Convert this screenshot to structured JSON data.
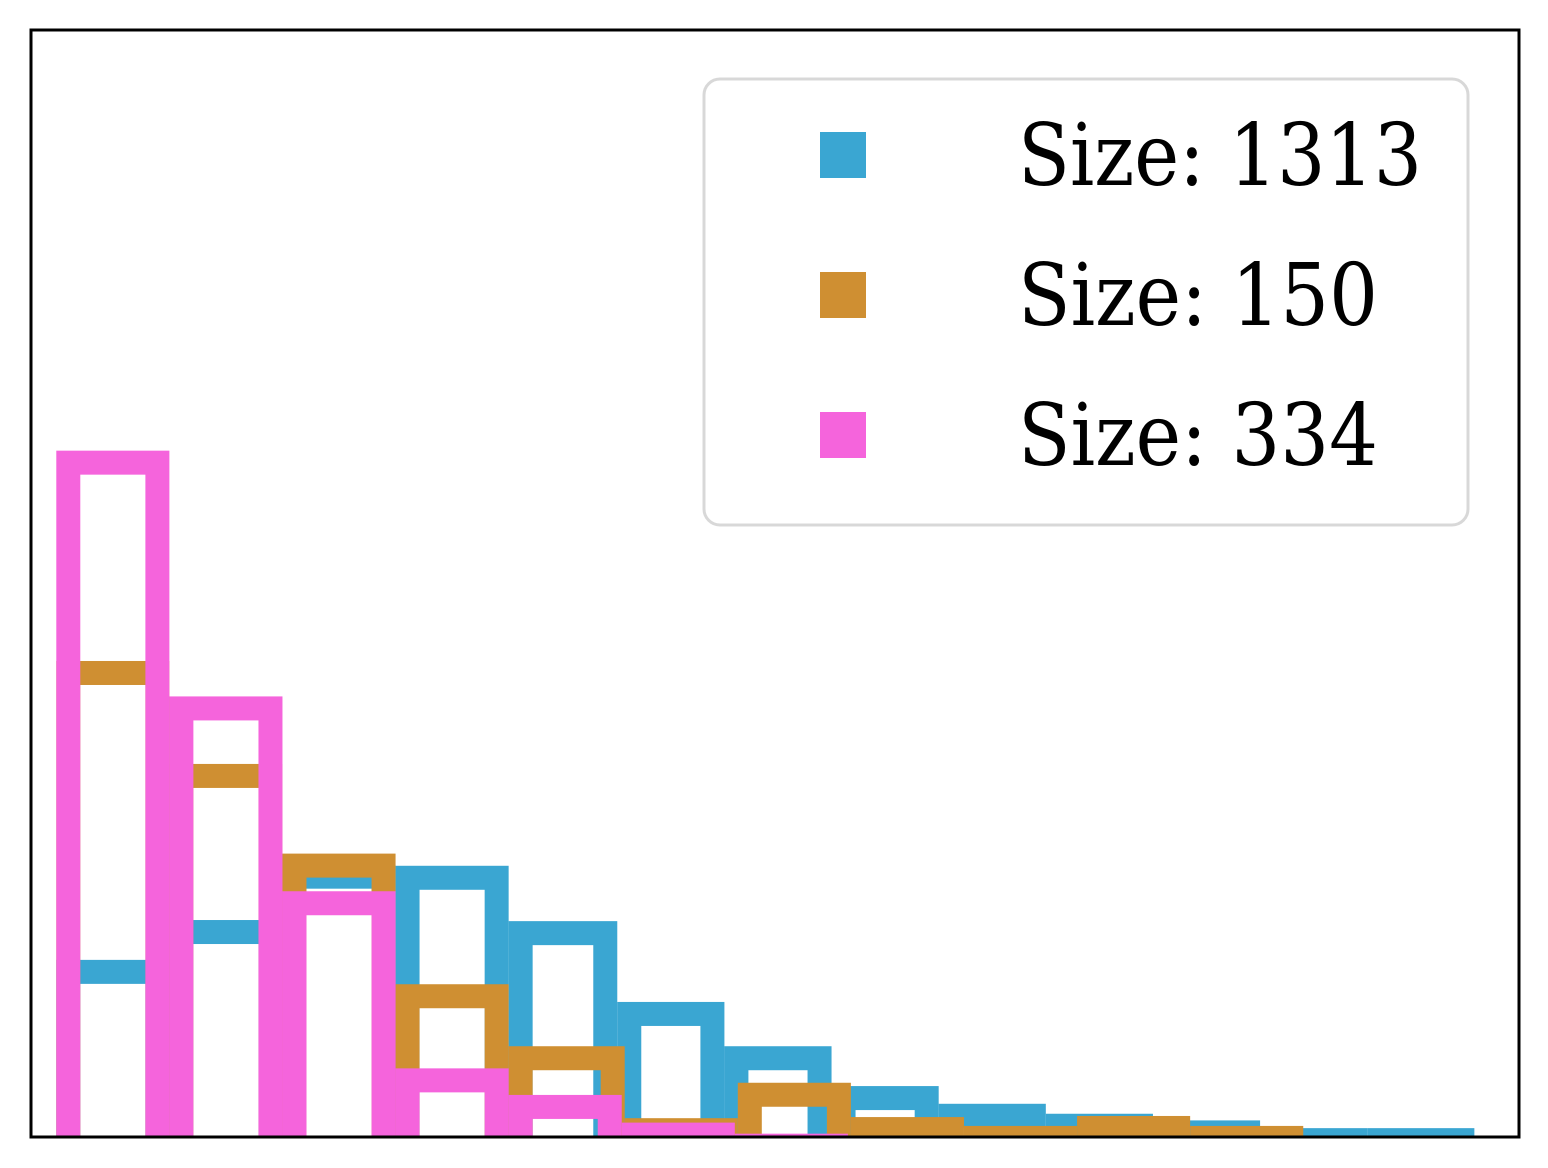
{
  "chart_data": {
    "type": "bar",
    "style": "step-histogram",
    "xlim": [
      0,
      1
    ],
    "ylim": [
      0,
      1
    ],
    "axes_ticks": "none",
    "grid": false,
    "legend_placement": "top-right",
    "series": [
      {
        "name": "Size: 1313",
        "color": "#3aa6d2",
        "bin_edges": [
          0.017,
          0.093,
          0.169,
          0.245,
          0.321,
          0.394,
          0.466,
          0.538,
          0.61,
          0.682,
          0.754,
          0.826,
          0.898,
          0.97
        ],
        "values": [
          0.16,
          0.196,
          0.246,
          0.245,
          0.195,
          0.122,
          0.082,
          0.046,
          0.03,
          0.021,
          0.015,
          0.008,
          0.008
        ]
      },
      {
        "name": "Size: 150",
        "color": "#cf8f32",
        "bin_edges": [
          0.017,
          0.093,
          0.169,
          0.245,
          0.321,
          0.399,
          0.475,
          0.551,
          0.627,
          0.703,
          0.779,
          0.855
        ],
        "values": [
          0.43,
          0.337,
          0.256,
          0.138,
          0.082,
          0.017,
          0.049,
          0.018,
          0.01,
          0.019,
          0.01
        ]
      },
      {
        "name": "Size: 334",
        "color": "#f564dc",
        "bin_edges": [
          0.017,
          0.093,
          0.169,
          0.245,
          0.321,
          0.397,
          0.473,
          0.549
        ],
        "values": [
          0.62,
          0.398,
          0.222,
          0.062,
          0.038,
          0.013,
          0.003
        ]
      }
    ]
  }
}
